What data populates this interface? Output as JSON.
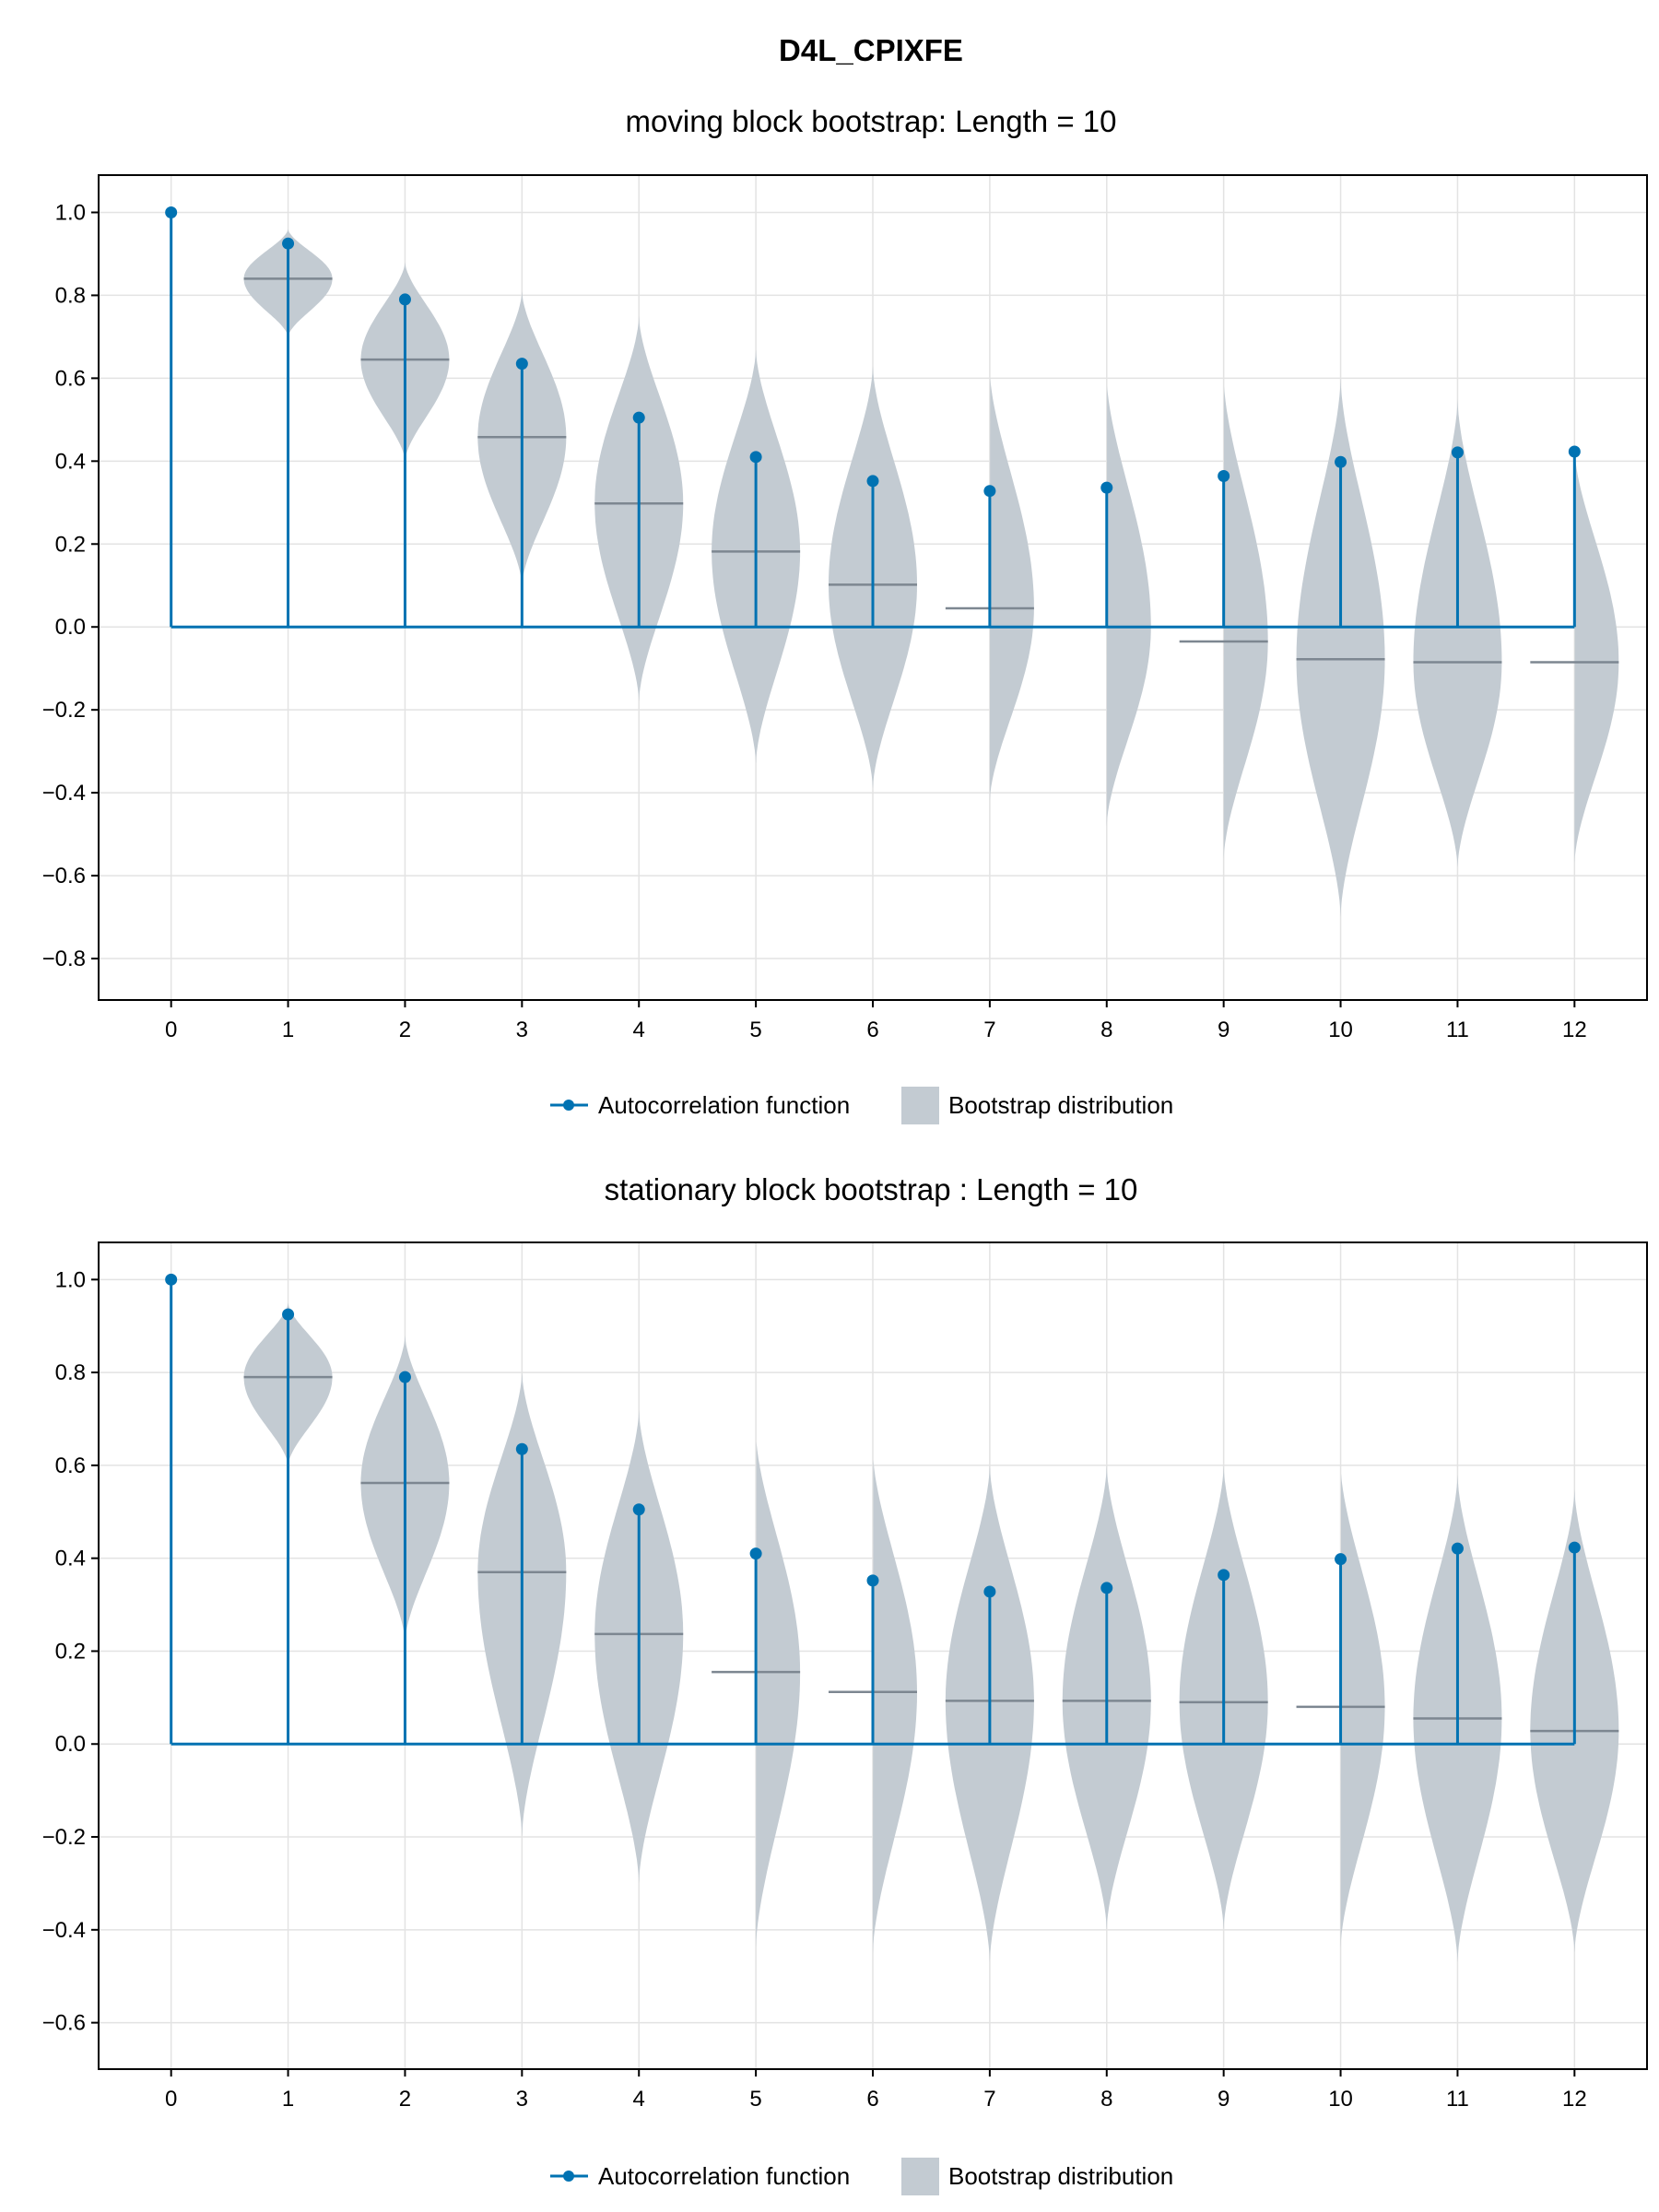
{
  "suptitle": "D4L_CPIXFE",
  "legend": {
    "acf_label": "Autocorrelation function",
    "bootstrap_label": "Bootstrap distribution"
  },
  "colors": {
    "acf": "#0072b2",
    "violin_fill": "#c3cbd2",
    "median": "#7d8791",
    "grid": "#e3e3e3"
  },
  "chart_data": [
    {
      "type": "violin+stem",
      "title": "moving block bootstrap: Length = 10",
      "xlabel": "",
      "ylabel": "",
      "x": [
        0,
        1,
        2,
        3,
        4,
        5,
        6,
        7,
        8,
        9,
        10,
        11,
        12
      ],
      "xlim": [
        -0.62,
        12.62
      ],
      "ylim": [
        -0.9,
        1.09
      ],
      "yticks": [
        1.0,
        0.8,
        0.6,
        0.4,
        0.2,
        0.0,
        -0.2,
        -0.4,
        -0.6,
        -0.8
      ],
      "ytick_labels": [
        "1.0",
        "0.8",
        "0.6",
        "0.4",
        "0.2",
        "0.0",
        "−0.2",
        "−0.4",
        "−0.6",
        "−0.8"
      ],
      "grid": true,
      "legend_position": "bottom-center",
      "series": [
        {
          "name": "Autocorrelation function",
          "values": [
            1.0,
            0.925,
            0.79,
            0.635,
            0.505,
            0.41,
            0.352,
            0.328,
            0.336,
            0.364,
            0.398,
            0.421,
            0.423
          ]
        },
        {
          "name": "Bootstrap distribution",
          "lags": [
            1,
            2,
            3,
            4,
            5,
            6,
            7,
            8,
            9,
            10,
            11,
            12
          ],
          "median": [
            0.84,
            0.645,
            0.458,
            0.298,
            0.182,
            0.102,
            0.045,
            -0.0,
            -0.035,
            -0.078,
            -0.085,
            -0.085
          ],
          "min": [
            0.7,
            0.4,
            0.1,
            -0.18,
            -0.33,
            -0.39,
            -0.42,
            -0.48,
            -0.56,
            -0.7,
            -0.58,
            -0.57
          ],
          "max": [
            0.96,
            0.88,
            0.81,
            0.75,
            0.67,
            0.63,
            0.62,
            0.6,
            0.6,
            0.6,
            0.55,
            0.43
          ]
        }
      ]
    },
    {
      "type": "violin+stem",
      "title": "stationary block bootstrap : Length = 10",
      "xlabel": "",
      "ylabel": "",
      "x": [
        0,
        1,
        2,
        3,
        4,
        5,
        6,
        7,
        8,
        9,
        10,
        11,
        12
      ],
      "xlim": [
        -0.62,
        12.62
      ],
      "ylim": [
        -0.7,
        1.08
      ],
      "yticks": [
        1.0,
        0.8,
        0.6,
        0.4,
        0.2,
        0.0,
        -0.2,
        -0.4,
        -0.6
      ],
      "ytick_labels": [
        "1.0",
        "0.8",
        "0.6",
        "0.4",
        "0.2",
        "0.0",
        "−0.2",
        "−0.4",
        "−0.6"
      ],
      "grid": true,
      "legend_position": "bottom-center",
      "series": [
        {
          "name": "Autocorrelation function",
          "values": [
            1.0,
            0.925,
            0.79,
            0.635,
            0.505,
            0.41,
            0.352,
            0.328,
            0.336,
            0.364,
            0.398,
            0.421,
            0.423
          ]
        },
        {
          "name": "Bootstrap distribution",
          "lags": [
            1,
            2,
            3,
            4,
            5,
            6,
            7,
            8,
            9,
            10,
            11,
            12
          ],
          "median": [
            0.79,
            0.562,
            0.37,
            0.237,
            0.155,
            0.112,
            0.093,
            0.093,
            0.09,
            0.08,
            0.055,
            0.028
          ],
          "min": [
            0.6,
            0.22,
            -0.2,
            -0.3,
            -0.44,
            -0.45,
            -0.47,
            -0.4,
            -0.4,
            -0.44,
            -0.47,
            -0.45
          ],
          "max": [
            0.95,
            0.88,
            0.8,
            0.72,
            0.67,
            0.63,
            0.6,
            0.6,
            0.6,
            0.6,
            0.58,
            0.55
          ]
        }
      ]
    }
  ]
}
